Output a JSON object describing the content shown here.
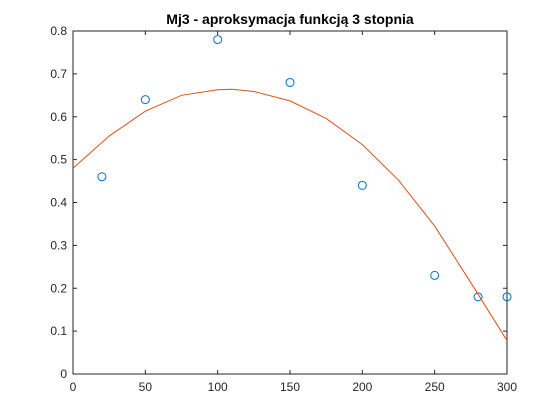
{
  "chart_data": {
    "type": "scatter",
    "title": "Mj3 - aproksymacja funkcją 3 stopnia",
    "xlabel": "",
    "ylabel": "",
    "xlim": [
      0,
      300
    ],
    "ylim": [
      0,
      0.8
    ],
    "x_ticks": [
      0,
      50,
      100,
      150,
      200,
      250,
      300
    ],
    "y_ticks": [
      0,
      0.1,
      0.2,
      0.3,
      0.4,
      0.5,
      0.6,
      0.7,
      0.8
    ],
    "grid": false,
    "legend": "none",
    "series": [
      {
        "kind": "markers",
        "marker": "circle-open",
        "color": "#0072bd",
        "x": [
          20,
          50,
          100,
          150,
          200,
          250,
          280,
          300
        ],
        "y": [
          0.46,
          0.64,
          0.78,
          0.68,
          0.44,
          0.23,
          0.18,
          0.18
        ]
      },
      {
        "kind": "line",
        "color": "#d95319",
        "x": [
          0,
          25,
          50,
          75,
          100,
          110,
          125,
          150,
          175,
          200,
          225,
          250,
          275,
          300
        ],
        "y": [
          0.48,
          0.555,
          0.613,
          0.65,
          0.663,
          0.664,
          0.659,
          0.637,
          0.596,
          0.535,
          0.452,
          0.345,
          0.213,
          0.078
        ]
      }
    ]
  }
}
